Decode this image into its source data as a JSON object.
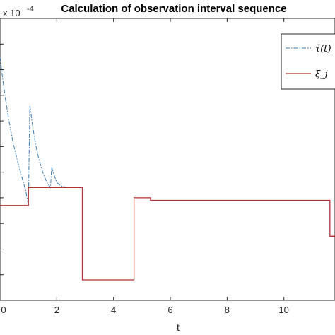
{
  "chart_data": {
    "type": "line",
    "title": "Calculation of observation interval sequence",
    "xlabel": "t",
    "ylabel": "",
    "y_exponent_label": "x 10",
    "y_exponent_power": "-4",
    "xlim": [
      0,
      11.8
    ],
    "ylim": [
      0,
      11
    ],
    "x_ticks": [
      0,
      2,
      4,
      6,
      8,
      10
    ],
    "x_tick_labels": [
      "0",
      "2",
      "4",
      "6",
      "8",
      "10"
    ],
    "y_ticks": [
      1,
      2,
      3,
      4,
      5,
      6,
      7,
      8,
      9,
      10
    ],
    "grid": false,
    "legend_position": "top-right",
    "series": [
      {
        "name": "τ̃(t)",
        "style": "dash-dot",
        "color": "#3b7bb3",
        "x": [
          0.0,
          0.1,
          0.2,
          0.3,
          0.45,
          0.6,
          0.75,
          0.9,
          0.97,
          1.0,
          1.05,
          1.15,
          1.25,
          1.35,
          1.5,
          1.65,
          1.78,
          1.82,
          1.9,
          2.0,
          2.1,
          2.2,
          2.4,
          2.6,
          2.9
        ],
        "values": [
          9.5,
          8.6,
          7.8,
          7.1,
          6.2,
          5.5,
          4.9,
          4.3,
          3.9,
          3.7,
          7.6,
          6.8,
          6.1,
          5.6,
          5.0,
          4.6,
          4.4,
          5.2,
          4.9,
          4.6,
          4.5,
          4.45,
          4.4,
          4.4,
          4.4
        ]
      },
      {
        "name": "ξ_j",
        "style": "solid",
        "color": "#b5302f",
        "x": [
          0.0,
          1.0,
          1.0,
          2.9,
          2.9,
          4.72,
          4.72,
          5.3,
          5.3,
          11.62,
          11.62,
          11.8
        ],
        "values": [
          3.7,
          3.7,
          4.4,
          4.4,
          0.8,
          0.8,
          4.0,
          4.0,
          3.9,
          3.9,
          2.5,
          2.5
        ]
      }
    ]
  }
}
